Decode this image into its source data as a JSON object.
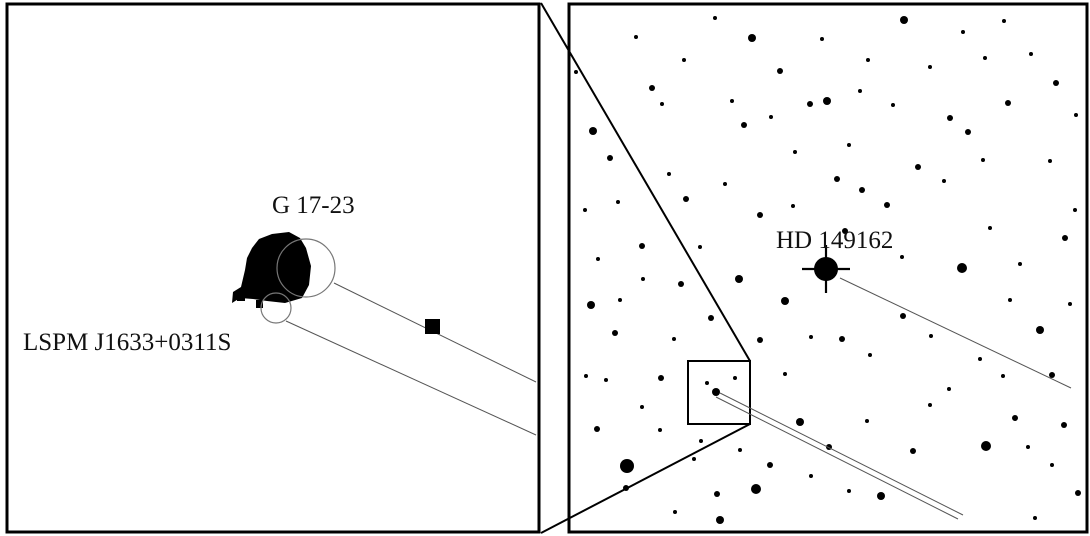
{
  "figure": {
    "left_panel": {
      "labels": {
        "primary": "G 17-23",
        "secondary": "LSPM J1633+0311S"
      }
    },
    "right_panel": {
      "labels": {
        "bright_star": "HD 149162"
      }
    }
  },
  "colors": {
    "background": "#ffffff",
    "ink": "#000000",
    "track": "#555555"
  }
}
